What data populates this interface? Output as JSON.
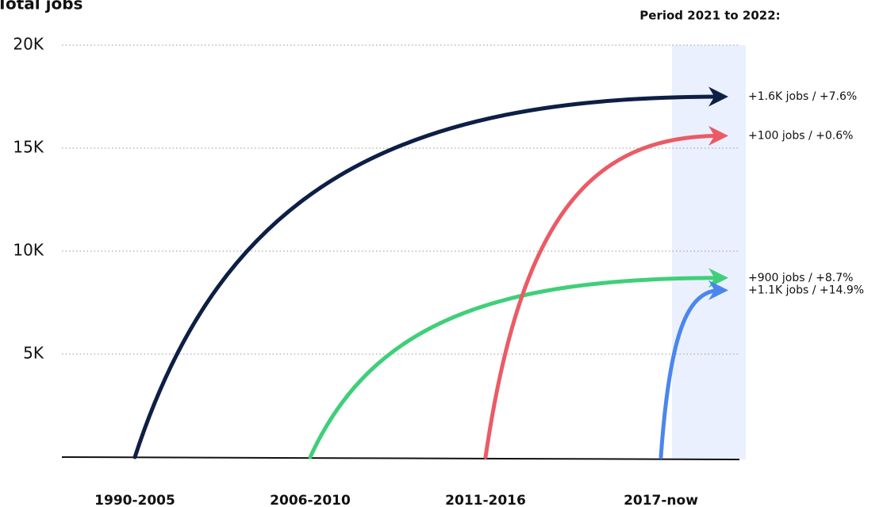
{
  "chart_data": {
    "type": "growth-arrow",
    "title": "Total jobs",
    "highlight_label": "Period 2021 to 2022:",
    "categories": [
      "1990-2005",
      "2006-2010",
      "2011-2016",
      "2017-now"
    ],
    "series": [
      {
        "color": "#0d1f45",
        "start": 0,
        "end": 17500,
        "label": "+1.6K jobs / +7.6%"
      },
      {
        "color": "#3fcf7a",
        "start": 0,
        "end": 8700,
        "label": "+900 jobs / +8.7%"
      },
      {
        "color": "#ea5b66",
        "start": 0,
        "end": 15600,
        "label": "+100 jobs / +0.6%"
      },
      {
        "color": "#4a86ee",
        "start": 0,
        "end": 8100,
        "label": "+1.1K jobs / +14.9%"
      }
    ],
    "ylim": [
      0,
      20000
    ],
    "yticks": [
      {
        "value": 5000,
        "label": "5K"
      },
      {
        "value": 10000,
        "label": "10K"
      },
      {
        "value": 15000,
        "label": "15K"
      },
      {
        "value": 20000,
        "label": "20K"
      }
    ],
    "grid": true
  }
}
